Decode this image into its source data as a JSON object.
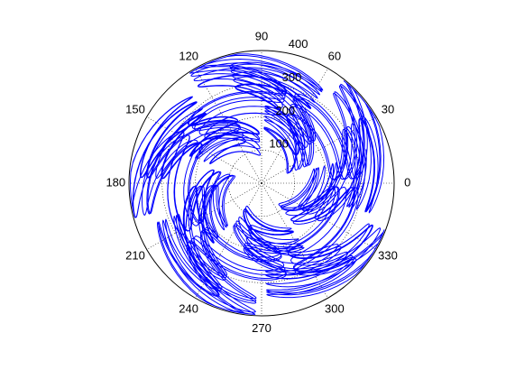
{
  "chart_data": {
    "type": "line",
    "projection": "polar",
    "title": "",
    "rmax": 400,
    "r_ticks": [
      100,
      200,
      300,
      400
    ],
    "theta_ticks": [
      0,
      30,
      60,
      90,
      120,
      150,
      180,
      210,
      240,
      270,
      300,
      330
    ],
    "theta_tick_labels": [
      "0",
      "30",
      "60",
      "90",
      "120",
      "150",
      "180",
      "210",
      "240",
      "270",
      "300",
      "330"
    ],
    "grid": true,
    "series": [
      {
        "color": "#0000ff",
        "description_generator": {
          "r_mean": 250,
          "r_amplitude": 100,
          "lobes": 5,
          "loops_per_lobe_factor": 4,
          "theta_end_turns": 7.0
        }
      }
    ]
  }
}
